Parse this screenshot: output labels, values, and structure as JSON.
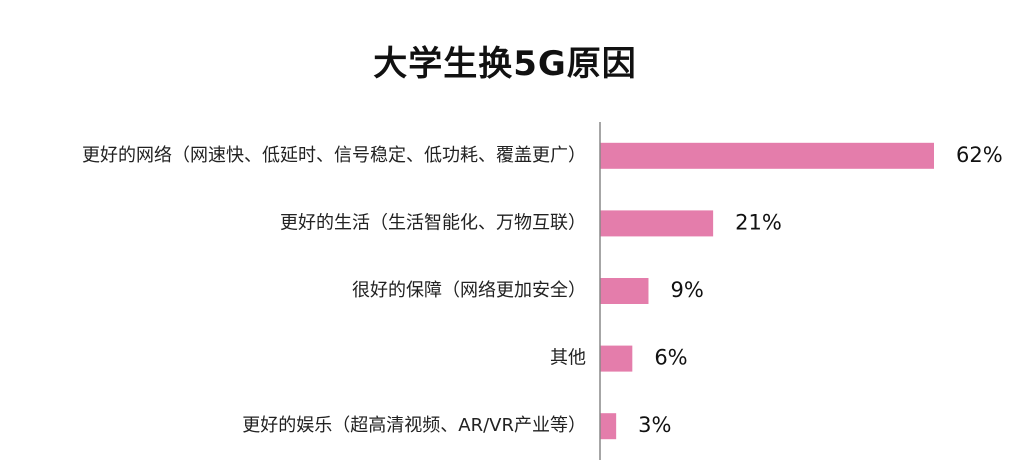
{
  "chart_data": {
    "type": "bar",
    "orientation": "horizontal",
    "title": "大学生换5G原因",
    "categories": [
      "更好的网络（网速快、低延时、信号稳定、低功耗、覆盖更广）",
      "更好的生活（生活智能化、万物互联）",
      "很好的保障（网络更加安全）",
      "其他",
      "更好的娱乐（超高清视频、AR/VR产业等）"
    ],
    "values": [
      62,
      21,
      9,
      6,
      3
    ],
    "value_labels": [
      "62%",
      "21%",
      "9%",
      "6%",
      "3%"
    ],
    "xlabel": "",
    "ylabel": "",
    "xlim": [
      0,
      62
    ],
    "grid": false,
    "legend": "none",
    "bar_color": "#E47DAB",
    "axis_color": "#888888"
  }
}
